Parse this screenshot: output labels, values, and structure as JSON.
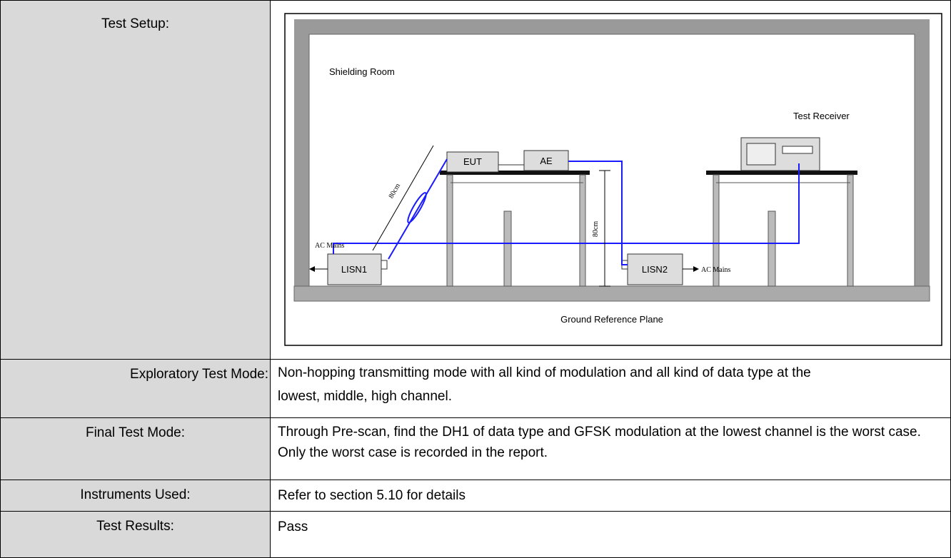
{
  "rows": [
    {
      "label": "Test Setup:",
      "diagram": {
        "room": "Shielding Room",
        "receiver": "Test Receiver",
        "eut": "EUT",
        "ae": "AE",
        "cable_length": "80cm",
        "table_height": "80cm",
        "mains_left": "AC Mains",
        "mains_right": "AC Mains",
        "lisn1": "LISN1",
        "lisn2": "LISN2",
        "ground": "Ground  Reference Plane"
      }
    },
    {
      "label": "Exploratory Test Mode:",
      "content": [
        "Non-hopping transmitting mode with all kind of modulation and all kind of data type at the lowest, middle, high channel."
      ]
    },
    {
      "label": "Final Test Mode:",
      "content": [
        "Through Pre-scan, find the DH1 of data type and GFSK modulation at the lowest channel is the worst case.",
        "Only the worst case is recorded in the report."
      ]
    },
    {
      "label": "Instruments Used:",
      "content": [
        "Refer to section 5.10 for details"
      ]
    },
    {
      "label": "Test Results:",
      "content": [
        "Pass"
      ]
    }
  ]
}
